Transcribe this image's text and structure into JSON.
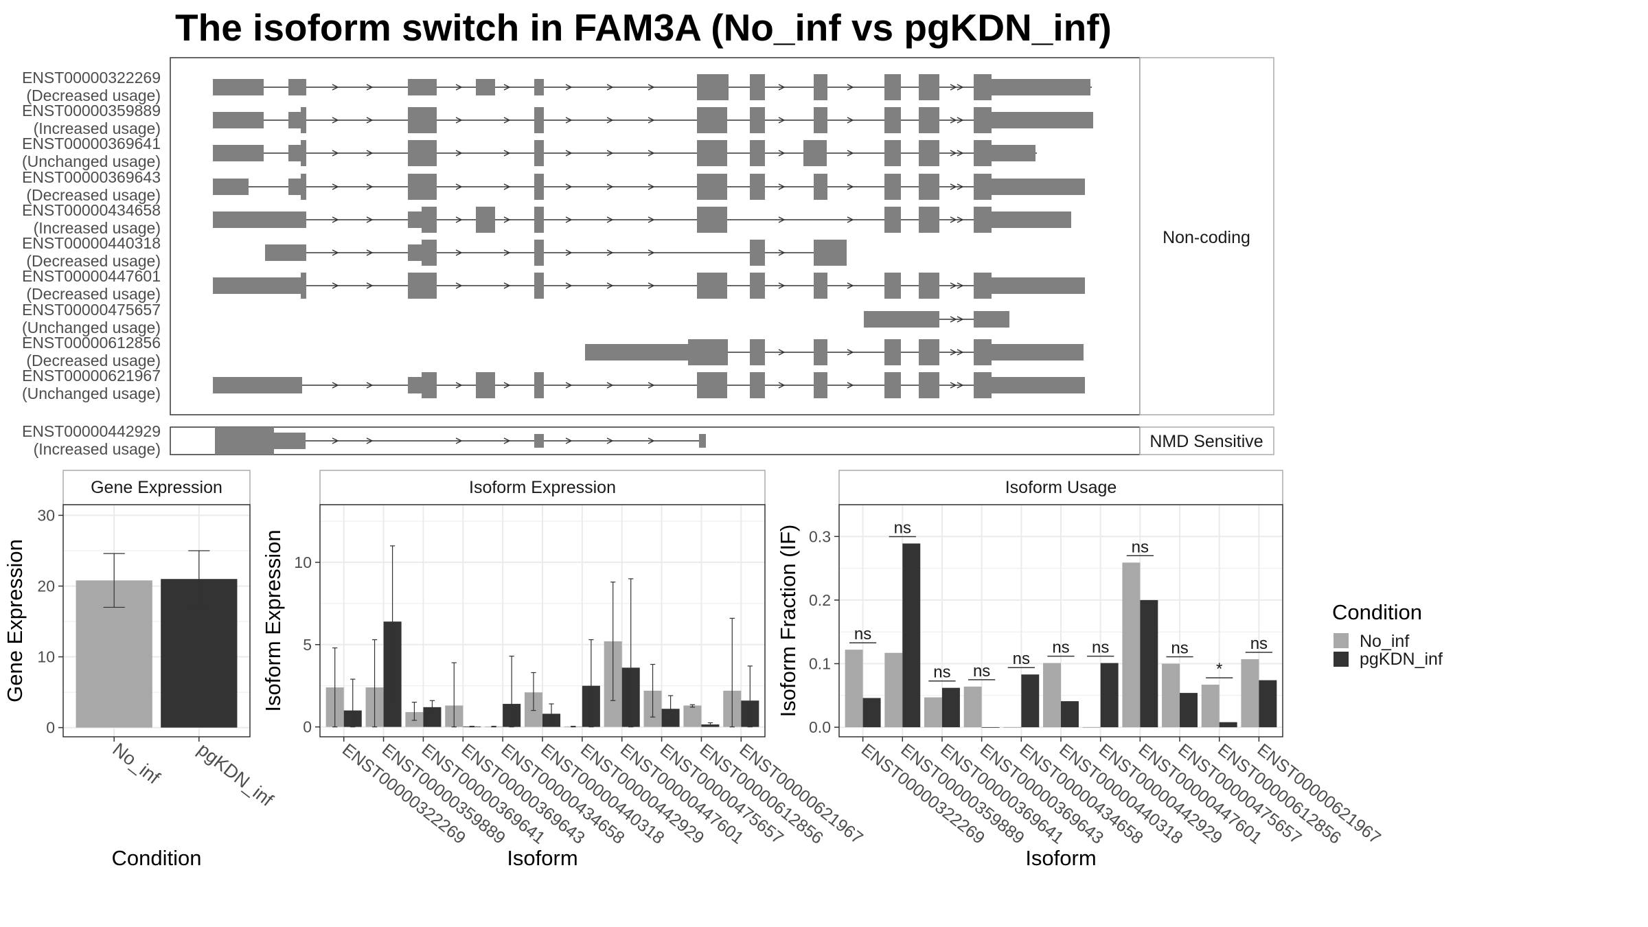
{
  "title": "The isoform switch in FAM3A (No_inf vs pgKDN_inf)",
  "colors": {
    "no_inf": "#a8a8a8",
    "pgkdn_inf": "#333333",
    "exon": "#808080",
    "panel_border": "#333333",
    "strip_border": "#aaaaaa",
    "grid": "#ebebeb"
  },
  "structure_panel": {
    "facet_label_noncoding": "Non-coding",
    "facet_label_nmd": "NMD Sensitive",
    "transcripts": [
      {
        "id": "ENST00000322269",
        "usage": "(Decreased usage)"
      },
      {
        "id": "ENST00000359889",
        "usage": "(Increased usage)"
      },
      {
        "id": "ENST00000369641",
        "usage": "(Unchanged usage)"
      },
      {
        "id": "ENST00000369643",
        "usage": "(Decreased usage)"
      },
      {
        "id": "ENST00000434658",
        "usage": "(Increased usage)"
      },
      {
        "id": "ENST00000440318",
        "usage": "(Decreased usage)"
      },
      {
        "id": "ENST00000447601",
        "usage": "(Decreased usage)"
      },
      {
        "id": "ENST00000475657",
        "usage": "(Unchanged usage)"
      },
      {
        "id": "ENST00000612856",
        "usage": "(Decreased usage)"
      },
      {
        "id": "ENST00000621967",
        "usage": "(Unchanged usage)"
      }
    ],
    "nmd_transcripts": [
      {
        "id": "ENST00000442929",
        "usage": "(Increased usage)"
      }
    ]
  },
  "chart_data": [
    {
      "type": "bar",
      "title": "Gene Expression",
      "xlabel": "Condition",
      "ylabel": "Gene Expression",
      "categories": [
        "No_inf",
        "pgKDN_inf"
      ],
      "values": [
        20.8,
        21.0
      ],
      "error_low": [
        17.0,
        17.2
      ],
      "error_high": [
        24.6,
        25.0
      ],
      "ylim": [
        -1.3,
        31.5
      ],
      "yticks": [
        0,
        10,
        20,
        30
      ]
    },
    {
      "type": "bar",
      "title": "Isoform Expression",
      "xlabel": "Isoform",
      "ylabel": "Isoform Expression",
      "categories": [
        "ENST00000322269",
        "ENST00000359889",
        "ENST00000369641",
        "ENST00000369643",
        "ENST00000434658",
        "ENST00000440318",
        "ENST00000442929",
        "ENST00000447601",
        "ENST00000475657",
        "ENST00000612856",
        "ENST00000621967"
      ],
      "series": [
        {
          "name": "No_inf",
          "values": [
            2.4,
            2.4,
            0.9,
            1.3,
            0.02,
            2.1,
            0.02,
            5.2,
            2.2,
            1.3,
            2.2
          ],
          "error_low": [
            0.0,
            0.0,
            0.4,
            0.0,
            0.0,
            1.0,
            0.0,
            1.6,
            0.6,
            1.2,
            0.0
          ],
          "error_high": [
            4.8,
            5.3,
            1.5,
            3.9,
            0.04,
            3.3,
            0.04,
            8.8,
            3.8,
            1.35,
            6.6
          ]
        },
        {
          "name": "pgKDN_inf",
          "values": [
            1.0,
            6.4,
            1.2,
            0.02,
            1.4,
            0.8,
            2.5,
            3.6,
            1.1,
            0.15,
            1.6
          ],
          "error_low": [
            0.0,
            1.8,
            0.8,
            0.0,
            0.0,
            0.2,
            0.0,
            0.0,
            0.3,
            0.05,
            0.0
          ],
          "error_high": [
            2.9,
            11.0,
            1.6,
            0.04,
            4.3,
            1.4,
            5.3,
            9.0,
            1.9,
            0.25,
            3.7
          ]
        }
      ],
      "ylim": [
        -0.6,
        13.5
      ],
      "yticks": [
        0,
        5,
        10
      ]
    },
    {
      "type": "bar",
      "title": "Isoform Usage",
      "xlabel": "Isoform",
      "ylabel": "Isoform Fraction (IF)",
      "categories": [
        "ENST00000322269",
        "ENST00000359889",
        "ENST00000369641",
        "ENST00000369643",
        "ENST00000434658",
        "ENST00000440318",
        "ENST00000442929",
        "ENST00000447601",
        "ENST00000475657",
        "ENST00000612856",
        "ENST00000621967"
      ],
      "series": [
        {
          "name": "No_inf",
          "values": [
            0.122,
            0.117,
            0.047,
            0.064,
            0.0,
            0.101,
            0.0,
            0.259,
            0.1,
            0.067,
            0.107
          ]
        },
        {
          "name": "pgKDN_inf",
          "values": [
            0.046,
            0.289,
            0.062,
            0.0,
            0.083,
            0.041,
            0.101,
            0.2,
            0.054,
            0.008,
            0.074
          ]
        }
      ],
      "significance": [
        "ns",
        "ns",
        "ns",
        "ns",
        "ns",
        "ns",
        "ns",
        "ns",
        "ns",
        "*",
        "ns"
      ],
      "ylim": [
        -0.015,
        0.35
      ],
      "yticks": [
        "0.0",
        "0.1",
        "0.2",
        "0.3"
      ]
    }
  ],
  "legend": {
    "title": "Condition",
    "items": [
      "No_inf",
      "pgKDN_inf"
    ]
  }
}
